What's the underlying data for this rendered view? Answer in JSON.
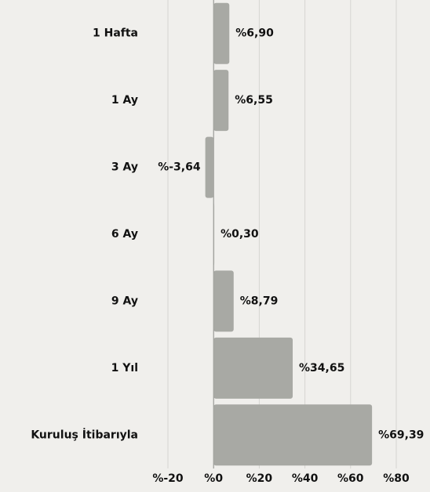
{
  "chart_data": {
    "type": "barh",
    "categories": [
      "1 Hafta",
      "1 Ay",
      "3 Ay",
      "6 Ay",
      "9 Ay",
      "1 Yıl",
      "Kuruluş İtibarıyla"
    ],
    "values": [
      6.9,
      6.55,
      -3.64,
      0.3,
      8.79,
      34.65,
      69.39
    ],
    "value_labels": [
      "%6,90",
      "%6,55",
      "%-3,64",
      "%0,30",
      "%8,79",
      "%34,65",
      "%69,39"
    ],
    "color": "#a8a9a4",
    "xlim": [
      -20,
      80
    ],
    "xticks": [
      {
        "value": -20,
        "label": "%-20"
      },
      {
        "value": 0,
        "label": "%0"
      },
      {
        "value": 20,
        "label": "%20"
      },
      {
        "value": 40,
        "label": "%40"
      },
      {
        "value": 60,
        "label": "%60"
      },
      {
        "value": 80,
        "label": "%80"
      }
    ],
    "grid": true
  }
}
